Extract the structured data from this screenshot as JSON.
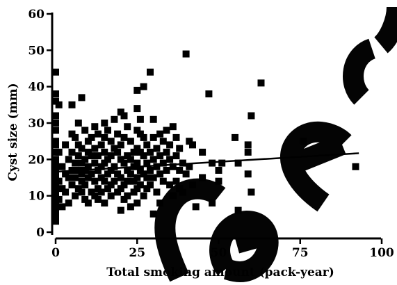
{
  "chart_data": {
    "type": "scatter",
    "title": "",
    "xlabel": "Total smoking amount (pack-year)",
    "ylabel": "Cyst size (mm)",
    "xlim": [
      0,
      100
    ],
    "ylim": [
      0,
      60
    ],
    "xticks": [
      "0",
      "25",
      "50",
      "75",
      "100"
    ],
    "yticks": [
      "0",
      "10",
      "20",
      "30",
      "40",
      "50",
      "60"
    ],
    "grid": false,
    "legend": "none",
    "regression_line": {
      "x": [
        0,
        93
      ],
      "y": [
        16.6,
        21.7
      ]
    },
    "points": [
      [
        0,
        44
      ],
      [
        0,
        38
      ],
      [
        0,
        36
      ],
      [
        0,
        32
      ],
      [
        0,
        30
      ],
      [
        0,
        28
      ],
      [
        0,
        25
      ],
      [
        0,
        24
      ],
      [
        0,
        22
      ],
      [
        0,
        20
      ],
      [
        0,
        19
      ],
      [
        0,
        18
      ],
      [
        0,
        17
      ],
      [
        0,
        16
      ],
      [
        0,
        15
      ],
      [
        0,
        14
      ],
      [
        0,
        13
      ],
      [
        0,
        12
      ],
      [
        0,
        11
      ],
      [
        0,
        10
      ],
      [
        0,
        9
      ],
      [
        0,
        8
      ],
      [
        0,
        7
      ],
      [
        0,
        6
      ],
      [
        0,
        5
      ],
      [
        0,
        4
      ],
      [
        0,
        3
      ],
      [
        1,
        35
      ],
      [
        1,
        22
      ],
      [
        1,
        14
      ],
      [
        1,
        9
      ],
      [
        2,
        18
      ],
      [
        2,
        12
      ],
      [
        2,
        7
      ],
      [
        3,
        24
      ],
      [
        3,
        16
      ],
      [
        3,
        11
      ],
      [
        4,
        20
      ],
      [
        4,
        15
      ],
      [
        4,
        8
      ],
      [
        5,
        35
      ],
      [
        5,
        27
      ],
      [
        5,
        22
      ],
      [
        5,
        17
      ],
      [
        5,
        13
      ],
      [
        6,
        26
      ],
      [
        6,
        19
      ],
      [
        6,
        15
      ],
      [
        6,
        10
      ],
      [
        7,
        30
      ],
      [
        7,
        24
      ],
      [
        7,
        21
      ],
      [
        7,
        17
      ],
      [
        7,
        12
      ],
      [
        8,
        37
      ],
      [
        8,
        23
      ],
      [
        8,
        19
      ],
      [
        8,
        16
      ],
      [
        8,
        14
      ],
      [
        8,
        11
      ],
      [
        9,
        28
      ],
      [
        9,
        20
      ],
      [
        9,
        17
      ],
      [
        9,
        13
      ],
      [
        9,
        9
      ],
      [
        10,
        25
      ],
      [
        10,
        22
      ],
      [
        10,
        18
      ],
      [
        10,
        15
      ],
      [
        10,
        8
      ],
      [
        11,
        26
      ],
      [
        11,
        21
      ],
      [
        11,
        16
      ],
      [
        11,
        11
      ],
      [
        12,
        29
      ],
      [
        12,
        23
      ],
      [
        12,
        19
      ],
      [
        12,
        14
      ],
      [
        12,
        10
      ],
      [
        13,
        27
      ],
      [
        13,
        21
      ],
      [
        13,
        17
      ],
      [
        13,
        12
      ],
      [
        13,
        9
      ],
      [
        14,
        24
      ],
      [
        14,
        18
      ],
      [
        14,
        15
      ],
      [
        14,
        11
      ],
      [
        15,
        30
      ],
      [
        15,
        26
      ],
      [
        15,
        22
      ],
      [
        15,
        19
      ],
      [
        15,
        14
      ],
      [
        15,
        8
      ],
      [
        16,
        28
      ],
      [
        16,
        20
      ],
      [
        16,
        16
      ],
      [
        16,
        12
      ],
      [
        17,
        25
      ],
      [
        17,
        21
      ],
      [
        17,
        17
      ],
      [
        17,
        13
      ],
      [
        17,
        10
      ],
      [
        18,
        31
      ],
      [
        18,
        23
      ],
      [
        18,
        18
      ],
      [
        18,
        14
      ],
      [
        19,
        27
      ],
      [
        19,
        22
      ],
      [
        19,
        16
      ],
      [
        19,
        11
      ],
      [
        20,
        33
      ],
      [
        20,
        24
      ],
      [
        20,
        20
      ],
      [
        20,
        15
      ],
      [
        20,
        12
      ],
      [
        20,
        6
      ],
      [
        21,
        32
      ],
      [
        21,
        26
      ],
      [
        21,
        19
      ],
      [
        21,
        13
      ],
      [
        21,
        9
      ],
      [
        22,
        29
      ],
      [
        22,
        21
      ],
      [
        22,
        17
      ],
      [
        22,
        14
      ],
      [
        22,
        10
      ],
      [
        23,
        25
      ],
      [
        23,
        20
      ],
      [
        23,
        16
      ],
      [
        23,
        7
      ],
      [
        24,
        22
      ],
      [
        24,
        18
      ],
      [
        24,
        14
      ],
      [
        24,
        11
      ],
      [
        25,
        39
      ],
      [
        25,
        34
      ],
      [
        25,
        28
      ],
      [
        25,
        23
      ],
      [
        25,
        19
      ],
      [
        25,
        15
      ],
      [
        25,
        12
      ],
      [
        25,
        8
      ],
      [
        26,
        31
      ],
      [
        26,
        27
      ],
      [
        26,
        22
      ],
      [
        26,
        17
      ],
      [
        26,
        13
      ],
      [
        27,
        40
      ],
      [
        27,
        26
      ],
      [
        27,
        21
      ],
      [
        27,
        16
      ],
      [
        27,
        10
      ],
      [
        28,
        24
      ],
      [
        28,
        19
      ],
      [
        28,
        15
      ],
      [
        28,
        12
      ],
      [
        29,
        44
      ],
      [
        29,
        22
      ],
      [
        29,
        17
      ],
      [
        29,
        13
      ],
      [
        30,
        31
      ],
      [
        30,
        26
      ],
      [
        30,
        20
      ],
      [
        30,
        15
      ],
      [
        30,
        5
      ],
      [
        31,
        23
      ],
      [
        31,
        18
      ],
      [
        31,
        11
      ],
      [
        32,
        27
      ],
      [
        32,
        21
      ],
      [
        32,
        16
      ],
      [
        32,
        8
      ],
      [
        33,
        25
      ],
      [
        33,
        19
      ],
      [
        33,
        14
      ],
      [
        34,
        28
      ],
      [
        34,
        22
      ],
      [
        34,
        17
      ],
      [
        35,
        24
      ],
      [
        35,
        20
      ],
      [
        35,
        13
      ],
      [
        36,
        29
      ],
      [
        36,
        18
      ],
      [
        36,
        10
      ],
      [
        37,
        26
      ],
      [
        37,
        21
      ],
      [
        37,
        14
      ],
      [
        38,
        23
      ],
      [
        38,
        17
      ],
      [
        38,
        12
      ],
      [
        39,
        19
      ],
      [
        39,
        11
      ],
      [
        40,
        49
      ],
      [
        40,
        16
      ],
      [
        41,
        25
      ],
      [
        41,
        18
      ],
      [
        42,
        24
      ],
      [
        42,
        13
      ],
      [
        43,
        7
      ],
      [
        45,
        22
      ],
      [
        45,
        15
      ],
      [
        47,
        38
      ],
      [
        48,
        19
      ],
      [
        48,
        8
      ],
      [
        50,
        17
      ],
      [
        50,
        14
      ],
      [
        51,
        19
      ],
      [
        55,
        26
      ],
      [
        56,
        19
      ],
      [
        56,
        6
      ],
      [
        59,
        24
      ],
      [
        59,
        22
      ],
      [
        59,
        16
      ],
      [
        60,
        32
      ],
      [
        60,
        11
      ],
      [
        63,
        41
      ],
      [
        76,
        25
      ],
      [
        92,
        18
      ]
    ]
  }
}
